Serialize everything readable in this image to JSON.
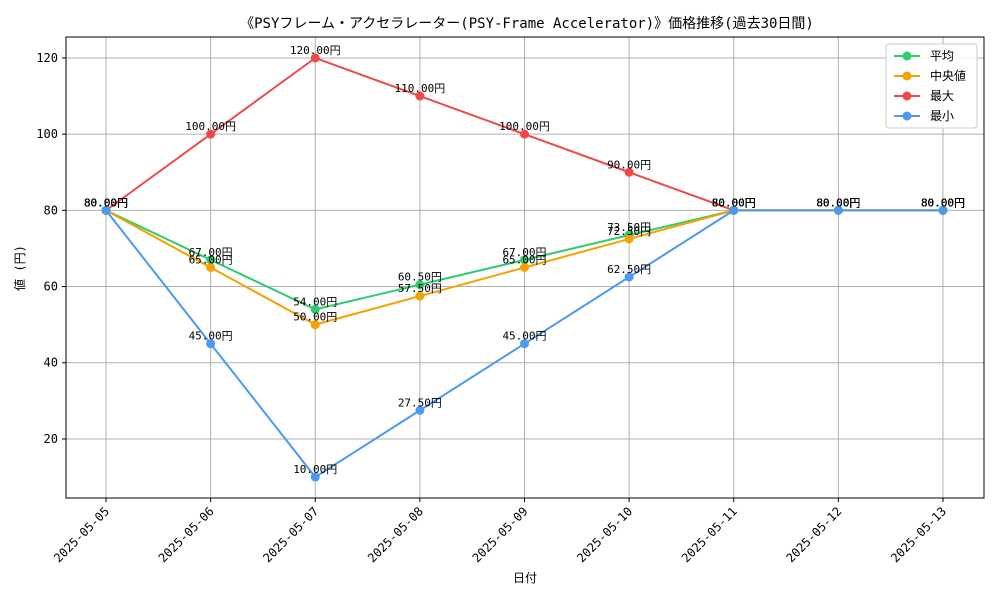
{
  "chart_data": {
    "type": "line",
    "title": "《PSYフレーム・アクセラレーター(PSY-Frame Accelerator)》価格推移(過去30日間)",
    "xlabel": "日付",
    "ylabel": "値 (円)",
    "ylim": [
      4.5,
      125.5
    ],
    "yticks": [
      20,
      40,
      60,
      80,
      100,
      120
    ],
    "grid": true,
    "legend_position": "top-right",
    "categories": [
      "2025-05-05",
      "2025-05-06",
      "2025-05-07",
      "2025-05-08",
      "2025-05-09",
      "2025-05-10",
      "2025-05-11",
      "2025-05-12",
      "2025-05-13"
    ],
    "label_suffix": "円",
    "series": [
      {
        "name": "平均",
        "color": "#2ecc71",
        "values": [
          80,
          67,
          54,
          60.5,
          67,
          73.5,
          80,
          80,
          80
        ]
      },
      {
        "name": "中央値",
        "color": "#f5a200",
        "values": [
          80,
          65,
          50,
          57.5,
          65,
          72.5,
          80,
          80,
          80
        ]
      },
      {
        "name": "最大",
        "color": "#f0494a",
        "values": [
          80,
          100,
          120,
          110,
          100,
          90,
          80,
          80,
          80
        ]
      },
      {
        "name": "最小",
        "color": "#4a9af0",
        "values": [
          80,
          45,
          10,
          27.5,
          45,
          62.5,
          80,
          80,
          80
        ]
      }
    ]
  }
}
